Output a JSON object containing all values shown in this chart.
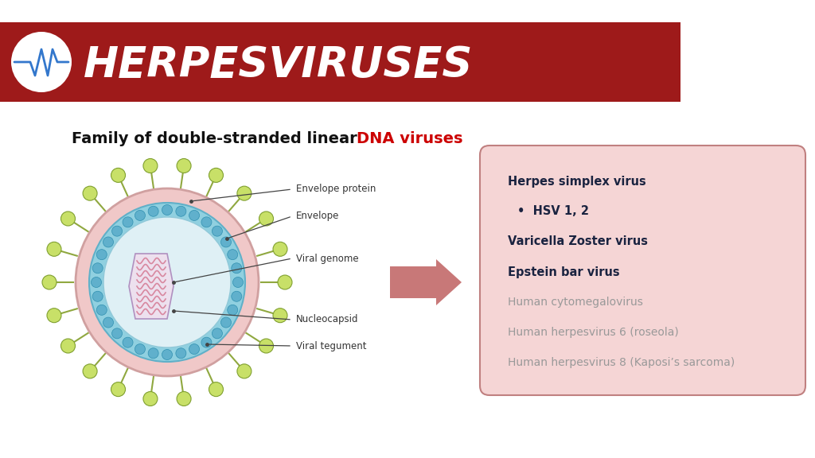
{
  "bg_color": "#ffffff",
  "header_bg": "#9e1a1a",
  "header_text": "HERPESVIRUSES",
  "header_text_color": "#ffffff",
  "subtitle_black": "Family of double-stranded linear ",
  "subtitle_red": "DNA viruses",
  "subtitle_black_color": "#111111",
  "subtitle_red_color": "#cc0000",
  "label_color": "#333333",
  "labels": [
    "Envelope protein",
    "Envelope",
    "Viral genome",
    "Nucleocapsid",
    "Viral tegument"
  ],
  "box_bg": "#f5d5d5",
  "box_border": "#c08080",
  "bold_color": "#1a2340",
  "light_color": "#999999",
  "arrow_color": "#c87878",
  "virus_outer_color": "#f0c8c8",
  "virus_outer_edge": "#d0a0a0",
  "virus_membrane_color": "#90d0e0",
  "virus_membrane_edge": "#60b0c8",
  "virus_inner_color": "#dff0f5",
  "virus_inner_edge": "#90c8d8",
  "bead_face": "#60b0cc",
  "bead_edge": "#3090b0",
  "spike_line": "#90a840",
  "spike_ball": "#c8e068",
  "spike_ball_edge": "#80a030",
  "capsid_face": "#ede0ee",
  "capsid_edge": "#b090c0",
  "genome_color": "#d888a0",
  "logo_pulse_color": "#3377cc"
}
